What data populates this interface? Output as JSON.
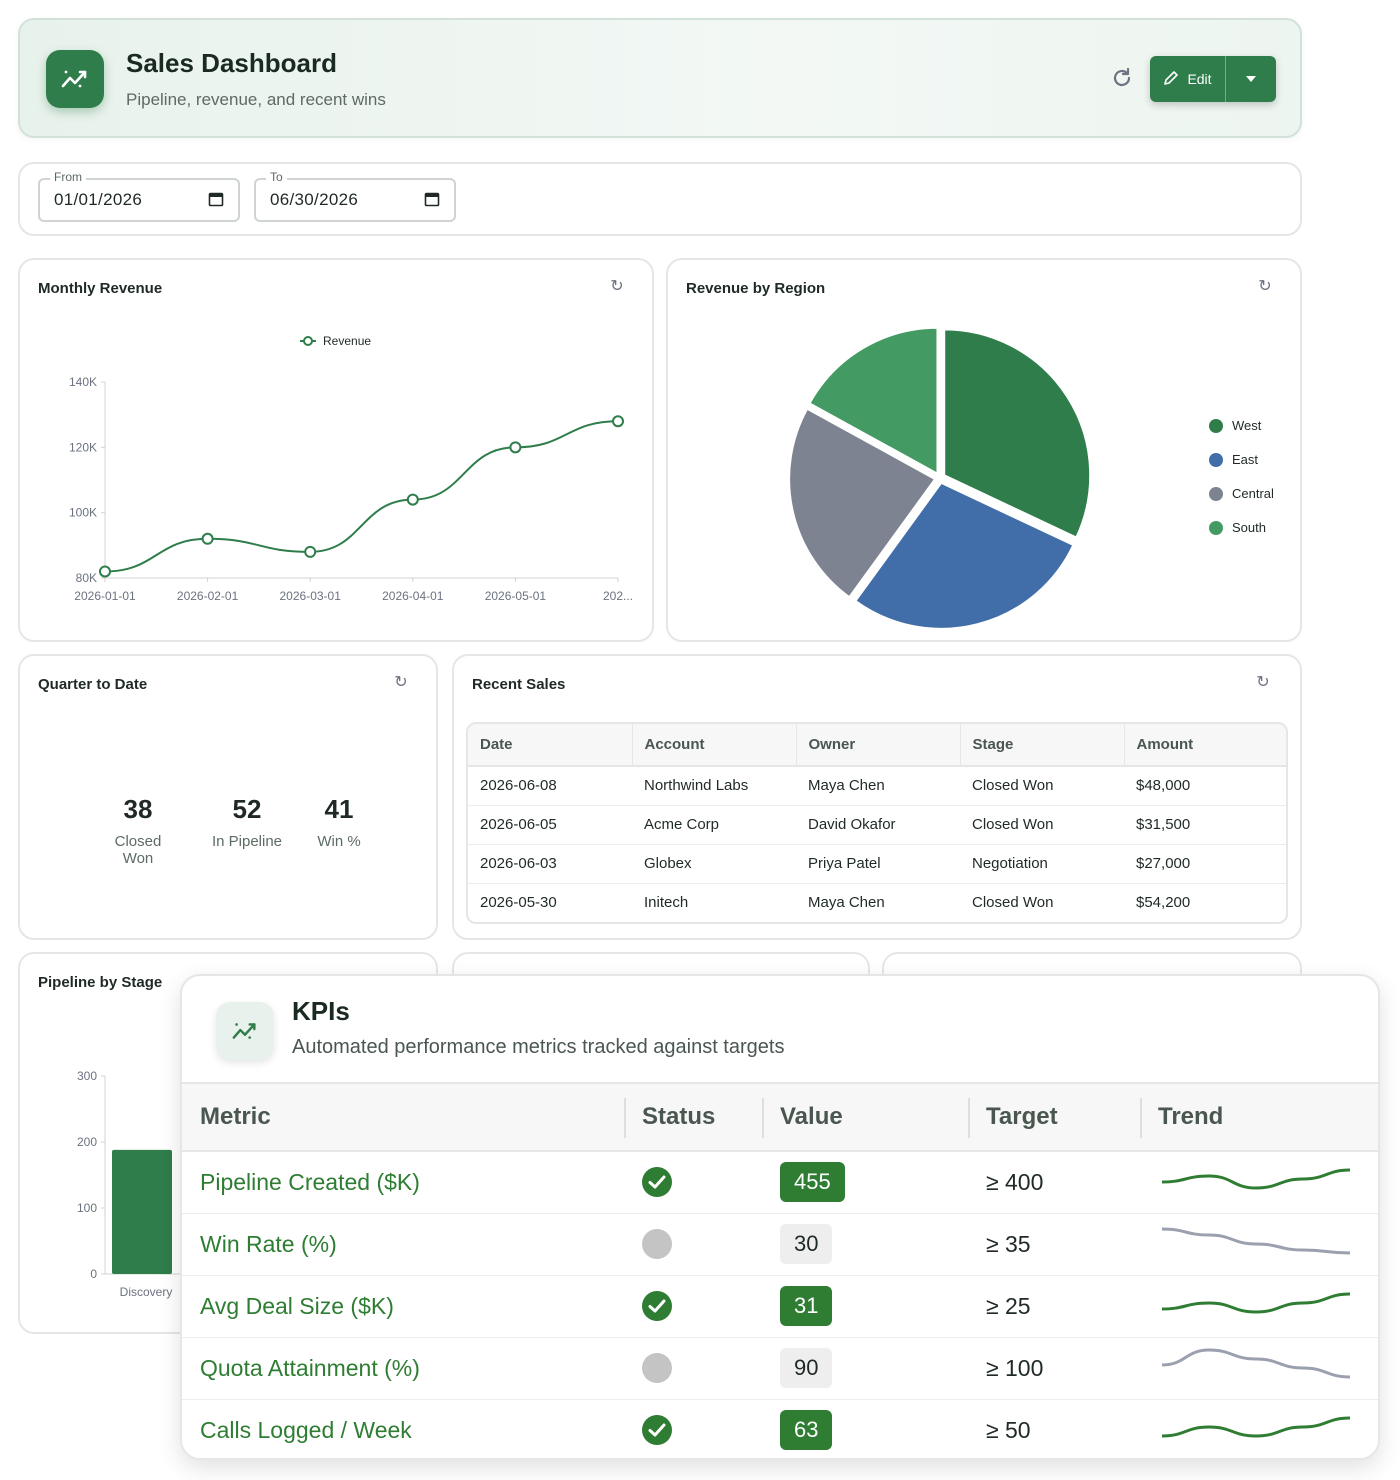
{
  "header": {
    "title": "Sales Dashboard",
    "subtitle": "Pipeline, revenue, and recent wins",
    "edit_label": "Edit"
  },
  "dates": {
    "from_label": "From",
    "from_value": "01/01/2026",
    "to_label": "To",
    "to_value": "06/30/2026"
  },
  "monthly_revenue": {
    "title": "Monthly Revenue",
    "chart_data": {
      "type": "line",
      "x": [
        "2026-01-01",
        "2026-02-01",
        "2026-03-01",
        "2026-04-01",
        "2026-05-01",
        "202..."
      ],
      "series": [
        {
          "name": "Revenue",
          "values": [
            82,
            92,
            88,
            104,
            120,
            128
          ]
        }
      ],
      "y_ticks": [
        "80K",
        "100K",
        "120K",
        "140K"
      ],
      "ylim": [
        80,
        140
      ],
      "legend": "top-center",
      "color": "#2e7d4a"
    }
  },
  "revenue_by_region": {
    "title": "Revenue by Region",
    "chart_data": {
      "type": "pie",
      "categories": [
        "West",
        "East",
        "Central",
        "South"
      ],
      "values": [
        32,
        28,
        23,
        17
      ],
      "colors": [
        "#2e7d4a",
        "#416ea8",
        "#7d8390",
        "#449a63"
      ],
      "legend": "right"
    }
  },
  "qtd": {
    "title": "Quarter to Date",
    "stats": [
      {
        "value": "38",
        "label": "Closed Won"
      },
      {
        "value": "52",
        "label": "In Pipeline"
      },
      {
        "value": "41",
        "label": "Win %"
      }
    ]
  },
  "recent_sales": {
    "title": "Recent Sales",
    "columns": [
      "Date",
      "Account",
      "Owner",
      "Stage",
      "Amount"
    ],
    "rows": [
      [
        "2026-06-08",
        "Northwind Labs",
        "Maya Chen",
        "Closed Won",
        "$48,000"
      ],
      [
        "2026-06-05",
        "Acme Corp",
        "David Okafor",
        "Closed Won",
        "$31,500"
      ],
      [
        "2026-06-03",
        "Globex",
        "Priya Patel",
        "Negotiation",
        "$27,000"
      ],
      [
        "2026-05-30",
        "Initech",
        "Maya Chen",
        "Closed Won",
        "$54,200"
      ]
    ]
  },
  "pipeline_by_stage": {
    "title": "Pipeline by Stage",
    "chart_data": {
      "type": "bar",
      "categories": [
        "Discovery"
      ],
      "values": [
        188
      ],
      "y_ticks": [
        "0",
        "100",
        "200",
        "300"
      ],
      "ylim": [
        0,
        300
      ],
      "color": "#2e7d4a"
    }
  },
  "kpis": {
    "title": "KPIs",
    "subtitle": "Automated performance metrics tracked against targets",
    "columns": [
      "Metric",
      "Status",
      "Value",
      "Target",
      "Trend"
    ],
    "rows": [
      {
        "metric": "Pipeline Created ($K)",
        "status": "good",
        "value": "455",
        "target": "≥ 400",
        "trend": [
          0.6,
          0.4,
          0.8,
          0.5,
          0.2
        ],
        "trend_color": "#2e7d32"
      },
      {
        "metric": "Win Rate (%)",
        "status": "neutral",
        "value": "30",
        "target": "≥ 35",
        "trend": [
          0.1,
          0.3,
          0.6,
          0.8,
          0.9
        ],
        "trend_color": "#9aa0ae"
      },
      {
        "metric": "Avg Deal Size ($K)",
        "status": "good",
        "value": "31",
        "target": "≥ 25",
        "trend": [
          0.7,
          0.5,
          0.8,
          0.5,
          0.2
        ],
        "trend_color": "#2e7d32"
      },
      {
        "metric": "Quota Attainment (%)",
        "status": "neutral",
        "value": "90",
        "target": "≥ 100",
        "trend": [
          0.5,
          0.0,
          0.3,
          0.6,
          0.9
        ],
        "trend_color": "#9aa0ae"
      },
      {
        "metric": "Calls Logged / Week",
        "status": "good",
        "value": "63",
        "target": "≥ 50",
        "trend": [
          0.8,
          0.5,
          0.8,
          0.5,
          0.2
        ],
        "trend_color": "#2e7d32"
      }
    ]
  }
}
